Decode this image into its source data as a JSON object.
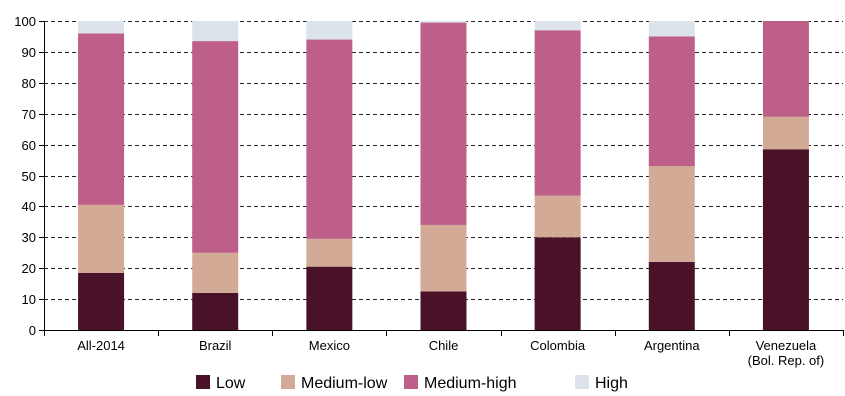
{
  "chart_data": {
    "type": "bar",
    "stacked": true,
    "title": "",
    "xlabel": "",
    "ylabel": "",
    "ylim": [
      0,
      100
    ],
    "yticks": [
      0,
      10,
      20,
      30,
      40,
      50,
      60,
      70,
      80,
      90,
      100
    ],
    "grid": "horizontal-dashed",
    "legend_position": "bottom",
    "categories": [
      [
        "All-2014"
      ],
      [
        "Brazil"
      ],
      [
        "Mexico"
      ],
      [
        "Chile"
      ],
      [
        "Colombia"
      ],
      [
        "Argentina"
      ],
      [
        "Venezuela",
        "(Bol. Rep. of)"
      ]
    ],
    "series": [
      {
        "name": "Low",
        "color": "#4a1228",
        "values": [
          18.5,
          12,
          20.5,
          12.5,
          30,
          22,
          58.5
        ]
      },
      {
        "name": "Medium-low",
        "color": "#d3aa96",
        "values": [
          22,
          13,
          9,
          21.5,
          13.5,
          31,
          10.5
        ]
      },
      {
        "name": "Medium-high",
        "color": "#bd5f89",
        "values": [
          55.5,
          68.5,
          64.5,
          65.5,
          53.5,
          42,
          31
        ]
      },
      {
        "name": "High",
        "color": "#dce3ea",
        "values": [
          4,
          6.5,
          6,
          0.5,
          3,
          5,
          0
        ]
      }
    ]
  }
}
